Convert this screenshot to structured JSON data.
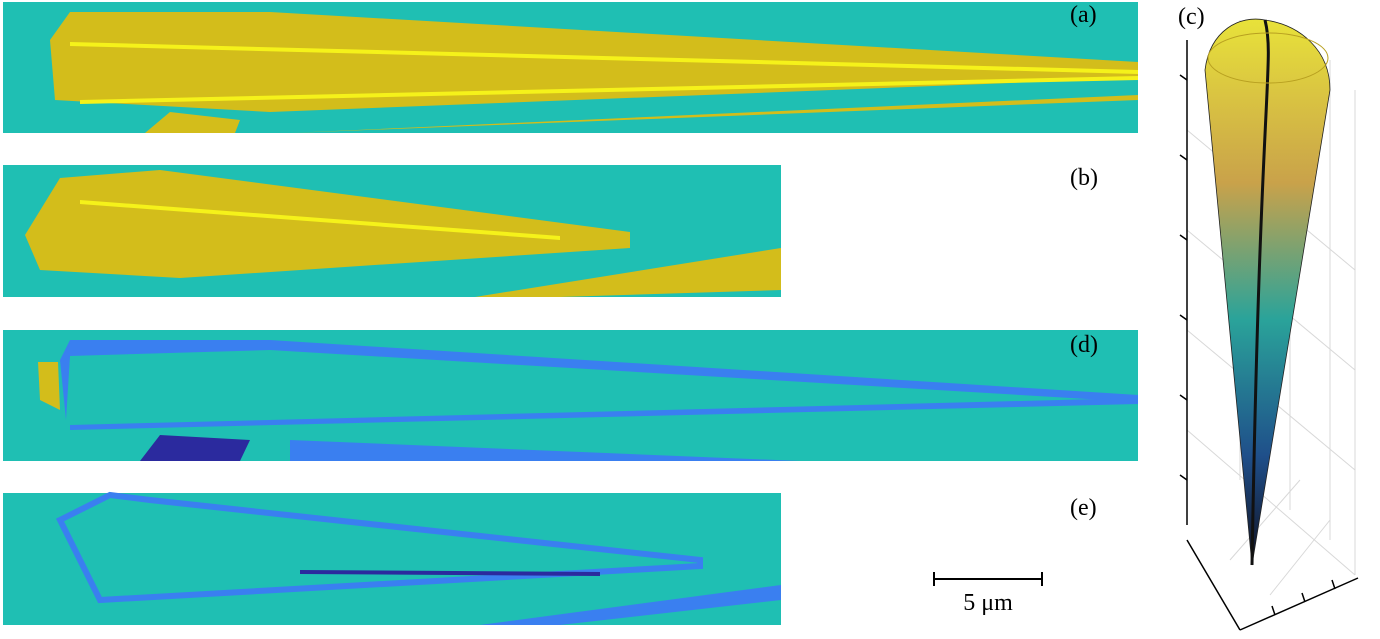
{
  "panels": [
    {
      "label": "(a)"
    },
    {
      "label": "(b)"
    },
    {
      "label": "(c)"
    },
    {
      "label": "(d)"
    },
    {
      "label": "(e)"
    }
  ],
  "scale_bar": {
    "label": "5 μm"
  }
}
